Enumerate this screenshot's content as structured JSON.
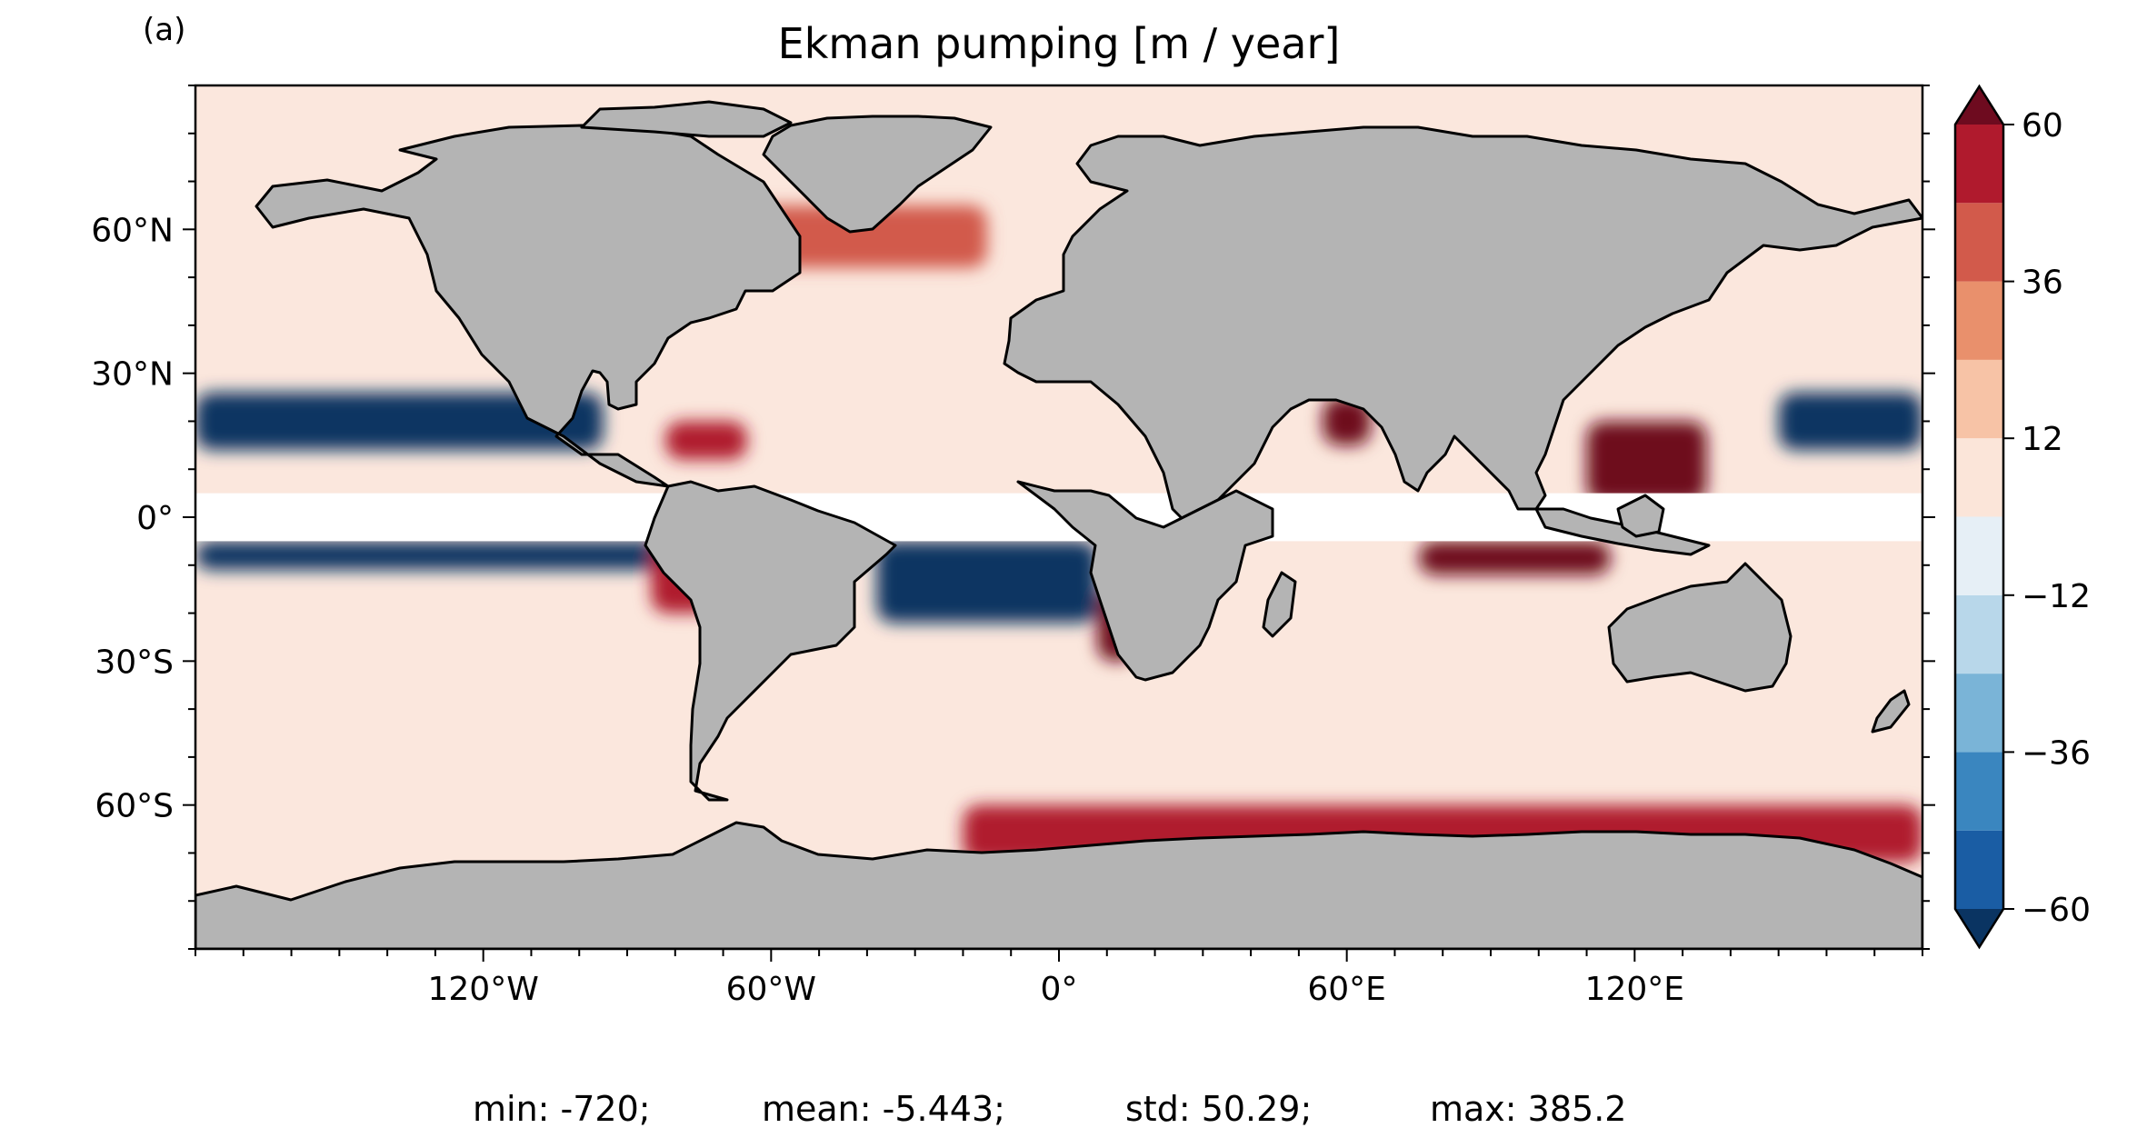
{
  "panel_label": "(a)",
  "title": "Ekman pumping [m / year]",
  "colors": {
    "ocean_background": "#fbe7dd",
    "land": "#b4b4b4",
    "coastline": "#000000",
    "equatorial_mask": "#ffffff"
  },
  "map": {
    "projection": "PlateCarree",
    "lon_range": [
      -180,
      180
    ],
    "lat_range": [
      -90,
      90
    ],
    "x_ticks": [
      {
        "value": -120,
        "label": "120°W"
      },
      {
        "value": -60,
        "label": "60°W"
      },
      {
        "value": 0,
        "label": "0°"
      },
      {
        "value": 60,
        "label": "60°E"
      },
      {
        "value": 120,
        "label": "120°E"
      }
    ],
    "y_ticks": [
      {
        "value": 60,
        "label": "60°N"
      },
      {
        "value": 30,
        "label": "30°N"
      },
      {
        "value": 0,
        "label": "0°"
      },
      {
        "value": -30,
        "label": "30°S"
      },
      {
        "value": -60,
        "label": "60°S"
      }
    ]
  },
  "colorbar": {
    "colormap": "RdBu_r",
    "vmin": -60,
    "vmax": 60,
    "extend": "both",
    "levels": [
      -60,
      -48,
      -36,
      -24,
      -12,
      0,
      12,
      24,
      36,
      48,
      60
    ],
    "level_colors": [
      "#1a5da4",
      "#3a86bf",
      "#7ab4d7",
      "#b8d7ea",
      "#e6eff6",
      "#fbe5d9",
      "#f7c3a6",
      "#e9906c",
      "#d25a4b",
      "#b01a2d"
    ],
    "under_color": "#0a3462",
    "over_color": "#6e0b1f",
    "tick_labels": [
      {
        "value": 60,
        "label": "60"
      },
      {
        "value": 36,
        "label": "36"
      },
      {
        "value": 12,
        "label": "12"
      },
      {
        "value": -12,
        "label": "−12"
      },
      {
        "value": -36,
        "label": "−36"
      },
      {
        "value": -60,
        "label": "−60"
      }
    ]
  },
  "field_regions": [
    {
      "name": "north-pacific-subtropical-band",
      "lon": [
        -180,
        -95
      ],
      "lat": [
        14,
        26
      ],
      "value": -70
    },
    {
      "name": "south-pacific-equatorial-band",
      "lon": [
        -180,
        -80
      ],
      "lat": [
        -11,
        -5
      ],
      "value": -70
    },
    {
      "name": "south-atlantic-equatorial-band",
      "lon": [
        -38,
        8
      ],
      "lat": [
        -22,
        -5
      ],
      "value": -65
    },
    {
      "name": "west-pacific-subtropical-band",
      "lon": [
        150,
        180
      ],
      "lat": [
        14,
        26
      ],
      "value": -70
    },
    {
      "name": "indian-ocean-equatorial-band",
      "lon": [
        75,
        115
      ],
      "lat": [
        -12,
        -5
      ],
      "value": 70
    },
    {
      "name": "southern-ocean-band",
      "lon": [
        -20,
        180
      ],
      "lat": [
        -72,
        -60
      ],
      "value": 50
    },
    {
      "name": "arabian-sea-upwelling",
      "lon": [
        55,
        65
      ],
      "lat": [
        15,
        25
      ],
      "value": 70
    },
    {
      "name": "caribbean-upwelling",
      "lon": [
        -82,
        -65
      ],
      "lat": [
        12,
        20
      ],
      "value": 60
    },
    {
      "name": "benguela-upwelling",
      "lon": [
        8,
        16
      ],
      "lat": [
        -30,
        -15
      ],
      "value": 65
    },
    {
      "name": "peru-upwelling",
      "lon": [
        -85,
        -72
      ],
      "lat": [
        -20,
        -5
      ],
      "value": 55
    },
    {
      "name": "maritime-continent",
      "lon": [
        110,
        135
      ],
      "lat": [
        3,
        20
      ],
      "value": 65
    },
    {
      "name": "north-atlantic-subpolar",
      "lon": [
        -65,
        -15
      ],
      "lat": [
        52,
        65
      ],
      "value": 45
    }
  ],
  "stats": {
    "min": "min: -720;",
    "mean": "mean: -5.443;",
    "std": "std: 50.29;",
    "max": "max: 385.2"
  }
}
